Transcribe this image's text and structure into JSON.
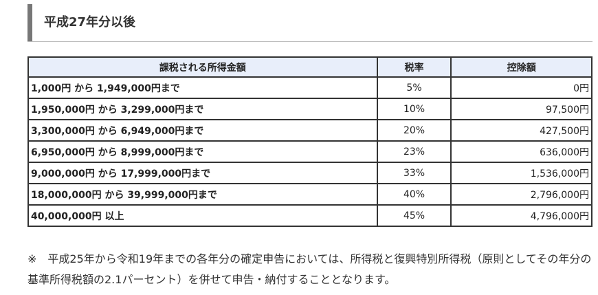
{
  "header": {
    "title": "平成27年分以後"
  },
  "table": {
    "columns": [
      "課税される所得金額",
      "税率",
      "控除額"
    ],
    "rows": [
      [
        "1,000円 から 1,949,000円まで",
        "5%",
        "0円"
      ],
      [
        "1,950,000円 から 3,299,000円まで",
        "10%",
        "97,500円"
      ],
      [
        "3,300,000円 から 6,949,000円まで",
        "20%",
        "427,500円"
      ],
      [
        "6,950,000円 から 8,999,000円まで",
        "23%",
        "636,000円"
      ],
      [
        "9,000,000円 から 17,999,000円まで",
        "33%",
        "1,536,000円"
      ],
      [
        "18,000,000円 から 39,999,000円まで",
        "40%",
        "2,796,000円"
      ],
      [
        "40,000,000円 以上",
        "45%",
        "4,796,000円"
      ]
    ]
  },
  "note": "※　平成25年から令和19年までの各年分の確定申告においては、所得税と復興特別所得税（原則としてその年分の基準所得税額の2.1パーセント）を併せて申告・納付することとなります。"
}
